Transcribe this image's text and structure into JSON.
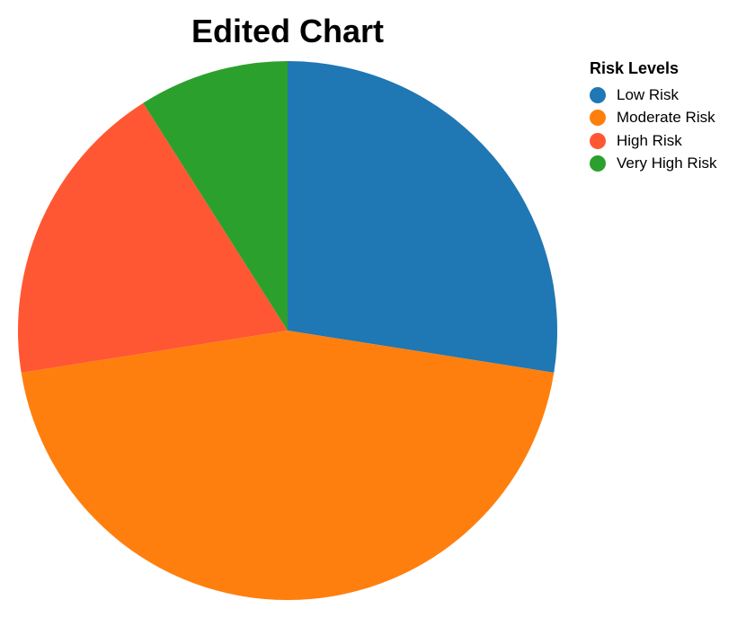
{
  "chart_data": {
    "type": "pie",
    "title": "Edited Chart",
    "legend_title": "Risk Levels",
    "legend_position": "top-right",
    "start_angle_deg": 0,
    "direction": "clockwise",
    "slices": [
      {
        "label": "Low Risk",
        "value": 27.5,
        "color": "#1f77b4"
      },
      {
        "label": "Moderate Risk",
        "value": 45,
        "color": "#ff7f0e"
      },
      {
        "label": "High Risk",
        "value": 18.5,
        "color": "#ff5733"
      },
      {
        "label": "Very High Risk",
        "value": 9,
        "color": "#2ca02c"
      }
    ]
  }
}
